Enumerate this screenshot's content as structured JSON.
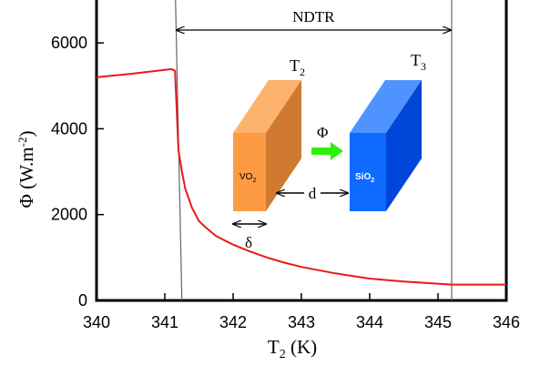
{
  "chart_data": {
    "type": "line",
    "xlabel": "T",
    "xlabel_sub": "2",
    "xlabel_unit": " (K)",
    "ylabel_symbol": "Φ",
    "ylabel_unit": " (W.m",
    "ylabel_sup": "-2",
    "ylabel_close": ")",
    "xlim": [
      340,
      346
    ],
    "ylim": [
      0,
      7000
    ],
    "xticks": [
      340,
      341,
      342,
      343,
      344,
      345,
      346
    ],
    "yticks": [
      0,
      2000,
      4000,
      6000
    ],
    "grid": false,
    "series": [
      {
        "color": "#e8191c",
        "x": [
          340.0,
          340.5,
          341.0,
          341.1,
          341.15,
          341.2,
          341.25,
          341.3,
          341.4,
          341.5,
          341.6,
          341.75,
          342.0,
          342.25,
          342.5,
          342.75,
          343.0,
          343.5,
          344.0,
          344.5,
          345.0,
          345.2,
          345.5,
          346.0
        ],
        "y": [
          5200,
          5280,
          5370,
          5390,
          5350,
          3500,
          3000,
          2600,
          2150,
          1850,
          1700,
          1500,
          1300,
          1140,
          1000,
          880,
          780,
          630,
          510,
          440,
          390,
          370,
          370,
          370
        ]
      }
    ],
    "vlines": [
      341.25,
      345.2
    ],
    "annotations": {
      "ndtr_label": "NDTR",
      "t2_label": "T",
      "t2_sub": "2",
      "t3_label": "T",
      "t3_sub": "3",
      "phi_label": "Φ",
      "d_label": "d",
      "delta_label": "δ",
      "vo2_main": "VO",
      "vo2_sub": "2",
      "sio2_main": "SiO",
      "sio2_sub": "2"
    },
    "colors": {
      "vo2_front": "#fd9b45",
      "vo2_side": "#cf7a30",
      "vo2_top": "#fdb36d",
      "sio2_front": "#0d6bff",
      "sio2_side": "#0046d8",
      "sio2_top": "#4f93ff",
      "flux_arrow": "#2ef20a"
    }
  }
}
